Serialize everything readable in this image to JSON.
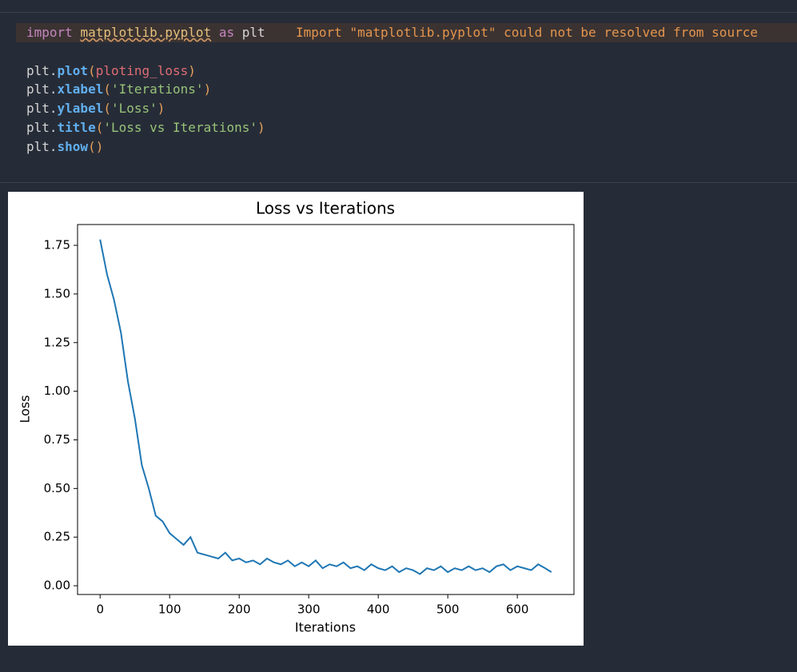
{
  "code": {
    "lines": [
      [
        "import",
        "matplotlib.pyplot",
        "as",
        "plt"
      ],
      [
        "plt.",
        "plot",
        "(",
        "ploting_loss",
        ")"
      ],
      [
        "plt.",
        "xlabel",
        "(",
        "'Iterations'",
        ")"
      ],
      [
        "plt.",
        "ylabel",
        "(",
        "'Loss'",
        ")"
      ],
      [
        "plt.",
        "title",
        "(",
        "'Loss vs Iterations'",
        ")"
      ],
      [
        "plt.",
        "show",
        "()"
      ]
    ],
    "warning": "Import \"matplotlib.pyplot\" could not be resolved from source"
  },
  "chart_data": {
    "type": "line",
    "title": "Loss vs Iterations",
    "x_label": "Iterations",
    "y_label": "Loss",
    "x": [
      0,
      10,
      20,
      30,
      40,
      50,
      60,
      70,
      80,
      90,
      100,
      110,
      120,
      130,
      140,
      150,
      160,
      170,
      180,
      190,
      200,
      210,
      220,
      230,
      240,
      250,
      260,
      270,
      280,
      290,
      300,
      310,
      320,
      330,
      340,
      350,
      360,
      370,
      380,
      390,
      400,
      410,
      420,
      430,
      440,
      450,
      460,
      470,
      480,
      490,
      500,
      510,
      520,
      530,
      540,
      550,
      560,
      570,
      580,
      590,
      600,
      610,
      620,
      630,
      640,
      649
    ],
    "series": [
      {
        "color": "#1f77b4",
        "values": [
          1.78,
          1.6,
          1.47,
          1.3,
          1.05,
          0.86,
          0.62,
          0.5,
          0.36,
          0.33,
          0.27,
          0.24,
          0.21,
          0.25,
          0.17,
          0.16,
          0.15,
          0.14,
          0.17,
          0.13,
          0.14,
          0.12,
          0.13,
          0.11,
          0.14,
          0.12,
          0.11,
          0.13,
          0.1,
          0.12,
          0.1,
          0.13,
          0.09,
          0.11,
          0.1,
          0.12,
          0.09,
          0.1,
          0.08,
          0.11,
          0.09,
          0.08,
          0.1,
          0.07,
          0.09,
          0.08,
          0.06,
          0.09,
          0.08,
          0.1,
          0.07,
          0.09,
          0.08,
          0.1,
          0.08,
          0.09,
          0.07,
          0.1,
          0.11,
          0.08,
          0.1,
          0.09,
          0.08,
          0.11,
          0.09,
          0.07
        ]
      }
    ],
    "xlim": [
      -32.45,
      681.45
    ],
    "xticks": [
      0,
      100,
      200,
      300,
      400,
      500,
      600
    ],
    "ylim": [
      -0.045,
      1.857
    ],
    "yticks": [
      {
        "value": 0,
        "label": "0.00"
      },
      {
        "value": 0.25,
        "label": "0.25"
      },
      {
        "value": 0.5,
        "label": "0.50"
      },
      {
        "value": 0.75,
        "label": "0.75"
      },
      {
        "value": 1,
        "label": "1.00"
      },
      {
        "value": 1.25,
        "label": "1.25"
      },
      {
        "value": 1.5,
        "label": "1.50"
      },
      {
        "value": 1.75,
        "label": "1.75"
      }
    ]
  }
}
